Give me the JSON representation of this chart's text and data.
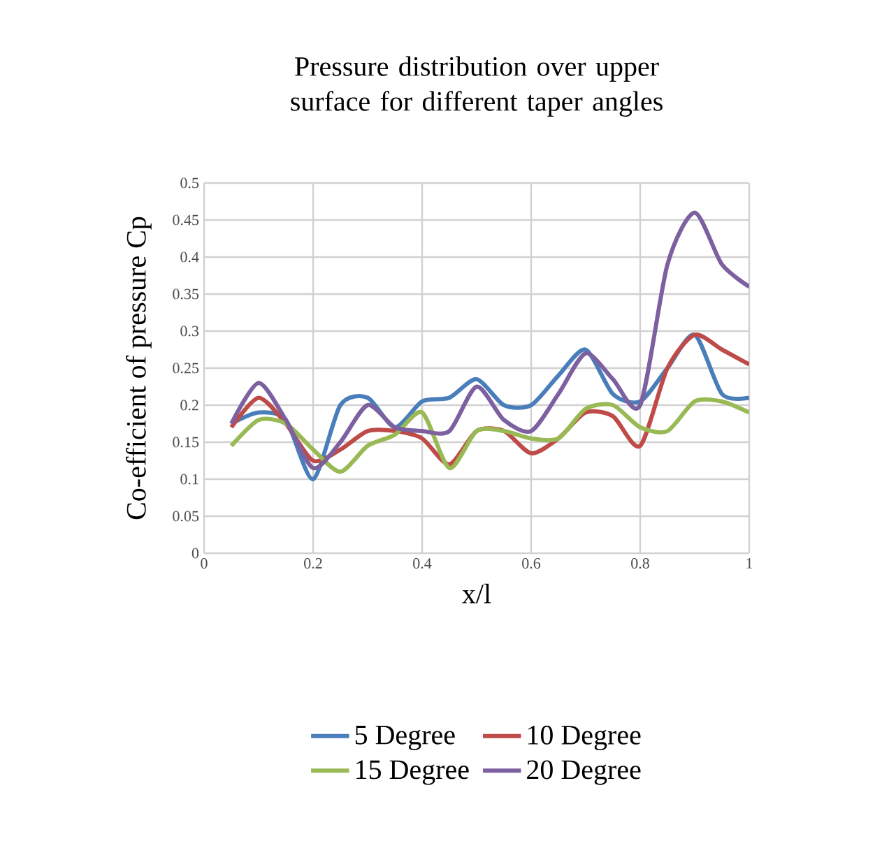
{
  "chart_data": {
    "type": "line",
    "title": "Pressure distribution over upper surface for different taper angles",
    "xlabel": "x/l",
    "ylabel": "Co-efficient of pressure Cp",
    "x": [
      0.05,
      0.1,
      0.15,
      0.2,
      0.25,
      0.3,
      0.35,
      0.4,
      0.45,
      0.5,
      0.55,
      0.6,
      0.65,
      0.7,
      0.75,
      0.8,
      0.85,
      0.9,
      0.95,
      1
    ],
    "series": [
      {
        "name": "5 Degree",
        "color": "#4a7ebb",
        "values": [
          0.175,
          0.19,
          0.18,
          0.1,
          0.2,
          0.21,
          0.17,
          0.205,
          0.21,
          0.235,
          0.2,
          0.2,
          0.24,
          0.275,
          0.215,
          0.205,
          0.25,
          0.295,
          0.215,
          0.21
        ]
      },
      {
        "name": "10 Degree",
        "color": "#be4b48",
        "values": [
          0.17,
          0.21,
          0.175,
          0.125,
          0.14,
          0.165,
          0.165,
          0.155,
          0.12,
          0.165,
          0.165,
          0.135,
          0.155,
          0.19,
          0.185,
          0.145,
          0.25,
          0.295,
          0.275,
          0.255
        ]
      },
      {
        "name": "15 Degree",
        "color": "#98b954",
        "values": [
          0.145,
          0.18,
          0.175,
          0.14,
          0.11,
          0.145,
          0.16,
          0.19,
          0.115,
          0.165,
          0.165,
          0.155,
          0.155,
          0.195,
          0.2,
          0.17,
          0.165,
          0.205,
          0.205,
          0.19
        ]
      },
      {
        "name": "20 Degree",
        "color": "#7d60a0",
        "values": [
          0.175,
          0.23,
          0.18,
          0.115,
          0.15,
          0.2,
          0.17,
          0.165,
          0.165,
          0.225,
          0.18,
          0.165,
          0.215,
          0.27,
          0.235,
          0.2,
          0.39,
          0.46,
          0.39,
          0.36
        ]
      }
    ],
    "xlim": [
      0,
      1
    ],
    "xticks": [
      0,
      0.2,
      0.4,
      0.6,
      0.8,
      1
    ],
    "ylim": [
      0,
      0.5
    ],
    "yticks": [
      0,
      0.05,
      0.1,
      0.15,
      0.2,
      0.25,
      0.3,
      0.35,
      0.4,
      0.45,
      0.5
    ],
    "grid": true,
    "legend": "bottom",
    "marker": "none",
    "line_style": "solid"
  }
}
